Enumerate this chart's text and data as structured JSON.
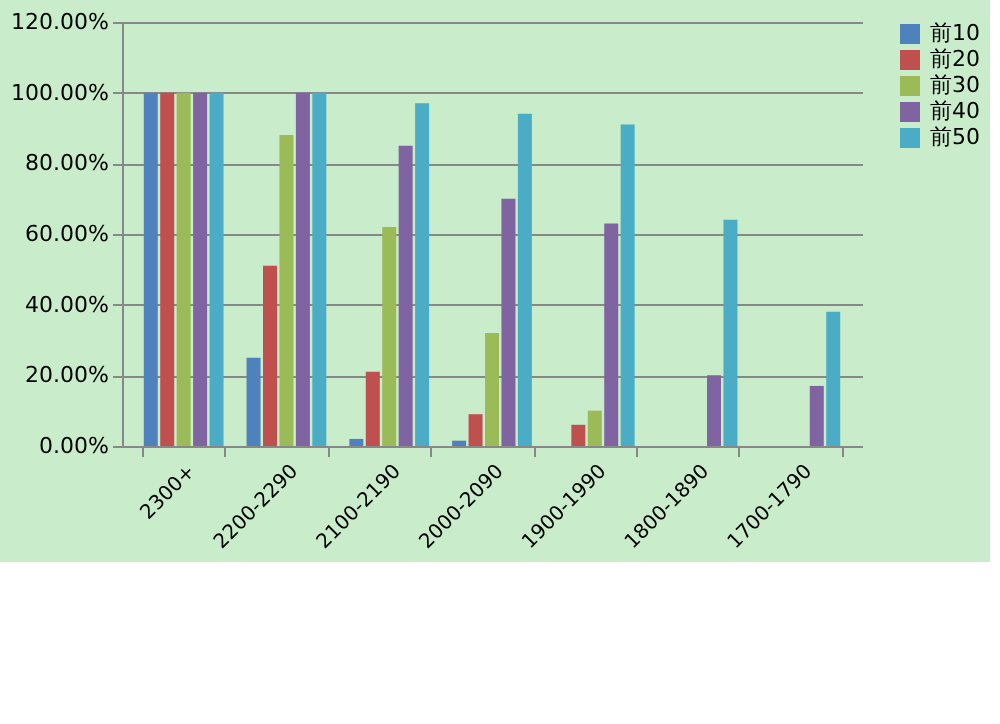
{
  "chart_data": {
    "type": "bar",
    "categories": [
      "2300+",
      "2200-2290",
      "2100-2190",
      "2000-2090",
      "1900-1990",
      "1800-1890",
      "1700-1790"
    ],
    "series": [
      {
        "name": "前10",
        "color": "#4f81bd",
        "values": [
          100,
          25,
          2,
          1.5,
          0,
          0,
          0
        ]
      },
      {
        "name": "前20",
        "color": "#c0504d",
        "values": [
          100,
          51,
          21,
          9,
          6,
          0,
          0
        ]
      },
      {
        "name": "前30",
        "color": "#9bbb59",
        "values": [
          100,
          88,
          62,
          32,
          10,
          0,
          0
        ]
      },
      {
        "name": "前40",
        "color": "#8064a2",
        "values": [
          100,
          100,
          85,
          70,
          63,
          20,
          17
        ]
      },
      {
        "name": "前50",
        "color": "#4bacc6",
        "values": [
          100,
          100,
          97,
          94,
          91,
          64,
          38
        ]
      }
    ],
    "ylim": [
      0,
      120
    ],
    "yticks": [
      {
        "value": 0,
        "label": "0.00%"
      },
      {
        "value": 20,
        "label": "20.00%"
      },
      {
        "value": 40,
        "label": "40.00%"
      },
      {
        "value": 60,
        "label": "60.00%"
      },
      {
        "value": 80,
        "label": "80.00%"
      },
      {
        "value": 100,
        "label": "100.00%"
      },
      {
        "value": 120,
        "label": "120.00%"
      }
    ],
    "grid": "y",
    "legend": "right"
  }
}
